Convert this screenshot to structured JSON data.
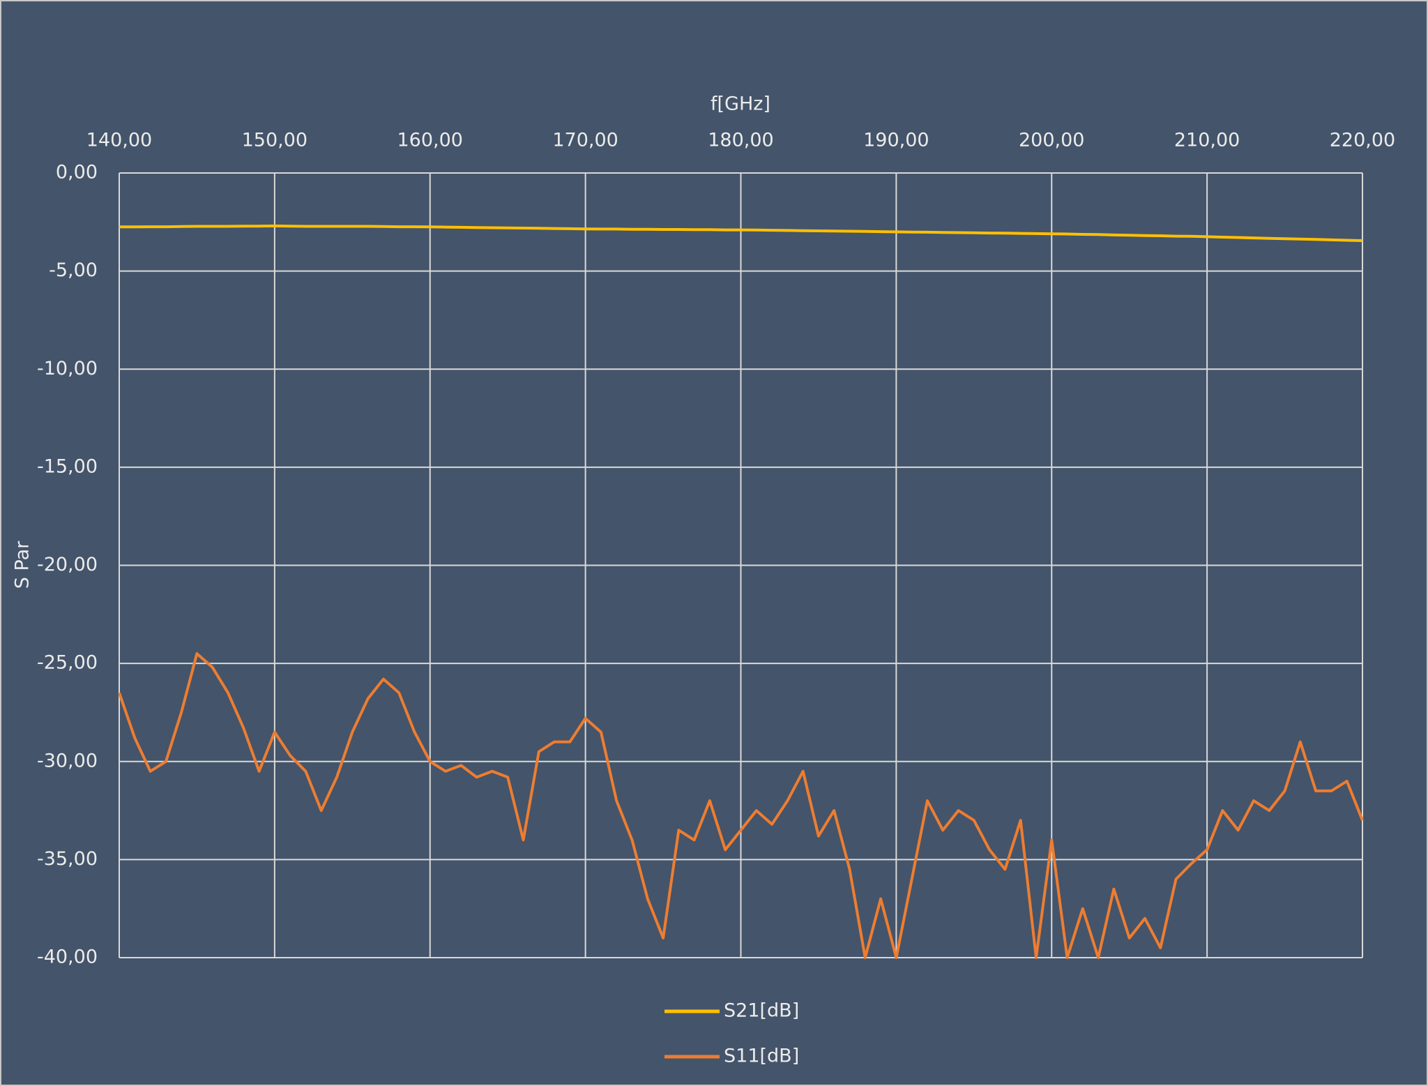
{
  "chart_data": {
    "type": "line",
    "x_label": "f[GHz]",
    "y_label": "S Par",
    "x": [
      140,
      141,
      142,
      143,
      144,
      145,
      146,
      147,
      148,
      149,
      150,
      151,
      152,
      153,
      154,
      155,
      156,
      157,
      158,
      159,
      160,
      161,
      162,
      163,
      164,
      165,
      166,
      167,
      168,
      169,
      170,
      171,
      172,
      173,
      174,
      175,
      176,
      177,
      178,
      179,
      180,
      181,
      182,
      183,
      184,
      185,
      186,
      187,
      188,
      189,
      190,
      191,
      192,
      193,
      194,
      195,
      196,
      197,
      198,
      199,
      200,
      201,
      202,
      203,
      204,
      205,
      206,
      207,
      208,
      209,
      210,
      211,
      212,
      213,
      214,
      215,
      216,
      217,
      218,
      219,
      220
    ],
    "series": [
      {
        "name": "S21[dB]",
        "color": "#ffc000",
        "values": [
          -2.75,
          -2.75,
          -2.74,
          -2.74,
          -2.73,
          -2.72,
          -2.72,
          -2.72,
          -2.71,
          -2.71,
          -2.7,
          -2.71,
          -2.72,
          -2.72,
          -2.72,
          -2.72,
          -2.72,
          -2.73,
          -2.74,
          -2.74,
          -2.75,
          -2.76,
          -2.77,
          -2.78,
          -2.79,
          -2.8,
          -2.81,
          -2.82,
          -2.83,
          -2.84,
          -2.85,
          -2.86,
          -2.86,
          -2.87,
          -2.87,
          -2.88,
          -2.88,
          -2.89,
          -2.89,
          -2.9,
          -2.9,
          -2.91,
          -2.92,
          -2.93,
          -2.94,
          -2.95,
          -2.96,
          -2.97,
          -2.98,
          -2.99,
          -3.0,
          -3.01,
          -3.02,
          -3.03,
          -3.04,
          -3.05,
          -3.06,
          -3.07,
          -3.08,
          -3.09,
          -3.1,
          -3.11,
          -3.13,
          -3.14,
          -3.16,
          -3.17,
          -3.19,
          -3.2,
          -3.22,
          -3.23,
          -3.25,
          -3.27,
          -3.29,
          -3.31,
          -3.33,
          -3.35,
          -3.37,
          -3.39,
          -3.41,
          -3.43,
          -3.45
        ]
      },
      {
        "name": "S11[dB]",
        "color": "#ed7d31",
        "values": [
          -26.5,
          -28.8,
          -30.5,
          -30.0,
          -27.5,
          -24.5,
          -25.2,
          -26.5,
          -28.3,
          -30.5,
          -28.5,
          -29.7,
          -30.5,
          -32.5,
          -30.8,
          -28.5,
          -26.8,
          -25.8,
          -26.5,
          -28.5,
          -30.0,
          -30.5,
          -30.2,
          -30.8,
          -30.5,
          -30.8,
          -34.0,
          -29.5,
          -29.0,
          -29.0,
          -27.8,
          -28.5,
          -32.0,
          -34.0,
          -37.0,
          -39.0,
          -33.5,
          -34.0,
          -32.0,
          -34.5,
          -33.5,
          -32.5,
          -33.2,
          -32.0,
          -30.5,
          -33.8,
          -32.5,
          -35.5,
          -40.0,
          -37.0,
          -40.0,
          -36.0,
          -32.0,
          -33.5,
          -32.5,
          -33.0,
          -34.5,
          -35.5,
          -33.0,
          -40.0,
          -34.0,
          -40.0,
          -37.5,
          -40.0,
          -36.5,
          -39.0,
          -38.0,
          -39.5,
          -36.0,
          -35.2,
          -34.5,
          -32.5,
          -33.5,
          -32.0,
          -32.5,
          -31.5,
          -29.0,
          -31.5,
          -31.5,
          -31.0,
          -33.0
        ]
      }
    ],
    "xlim": [
      140,
      220
    ],
    "xticks": [
      {
        "value": 140,
        "label": "140,00"
      },
      {
        "value": 150,
        "label": "150,00"
      },
      {
        "value": 160,
        "label": "160,00"
      },
      {
        "value": 170,
        "label": "170,00"
      },
      {
        "value": 180,
        "label": "180,00"
      },
      {
        "value": 190,
        "label": "190,00"
      },
      {
        "value": 200,
        "label": "200,00"
      },
      {
        "value": 210,
        "label": "210,00"
      },
      {
        "value": 220,
        "label": "220,00"
      }
    ],
    "ylim": [
      -40,
      0
    ],
    "yticks": [
      {
        "value": 0,
        "label": "0,00"
      },
      {
        "value": -5,
        "label": "-5,00"
      },
      {
        "value": -10,
        "label": "-10,00"
      },
      {
        "value": -15,
        "label": "-15,00"
      },
      {
        "value": -20,
        "label": "-20,00"
      },
      {
        "value": -25,
        "label": "-25,00"
      },
      {
        "value": -30,
        "label": "-30,00"
      },
      {
        "value": -35,
        "label": "-35,00"
      },
      {
        "value": -40,
        "label": "-40,00"
      }
    ],
    "grid": true,
    "legend": "bottom"
  }
}
